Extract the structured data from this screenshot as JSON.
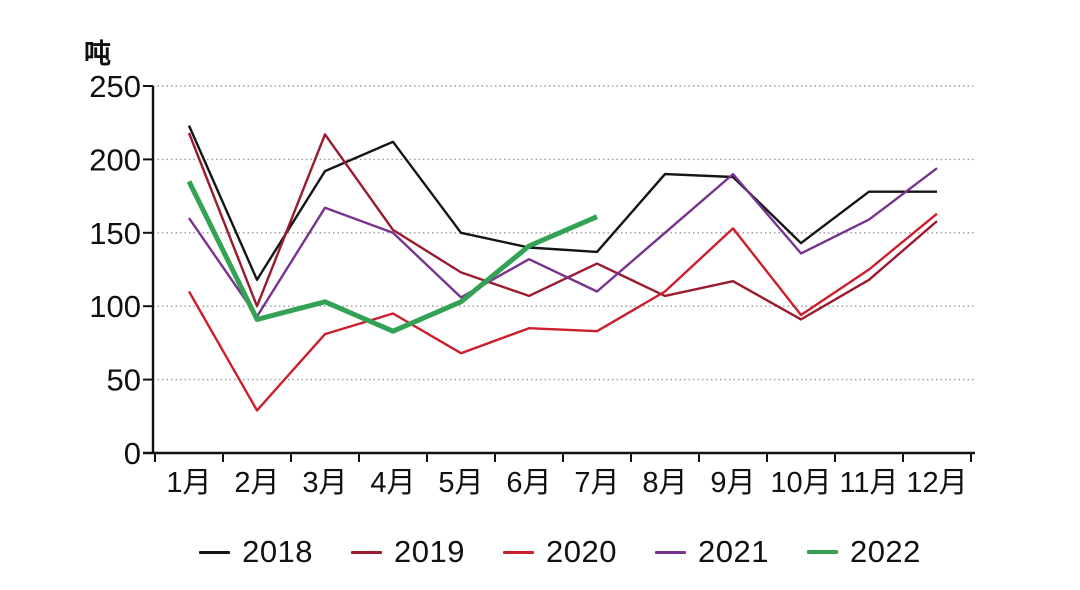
{
  "chart_data": {
    "type": "line",
    "title": "",
    "unit_label": "吨",
    "categories": [
      "1月",
      "2月",
      "3月",
      "4月",
      "5月",
      "6月",
      "7月",
      "8月",
      "9月",
      "10月",
      "11月",
      "12月"
    ],
    "series": [
      {
        "name": "2018",
        "color": "#141414",
        "line_width": 2.4,
        "values": [
          223,
          118,
          192,
          212,
          150,
          140,
          137,
          190,
          188,
          143,
          178,
          178
        ]
      },
      {
        "name": "2019",
        "color": "#9a1a2e",
        "line_width": 2.4,
        "values": [
          218,
          100,
          217,
          152,
          123,
          107,
          129,
          107,
          117,
          91,
          118,
          158
        ]
      },
      {
        "name": "2020",
        "color": "#cc1f2e",
        "line_width": 2.4,
        "values": [
          110,
          29,
          81,
          95,
          68,
          85,
          83,
          110,
          153,
          94,
          125,
          163
        ]
      },
      {
        "name": "2021",
        "color": "#78338e",
        "line_width": 2.4,
        "values": [
          160,
          93,
          167,
          150,
          106,
          132,
          110,
          150,
          190,
          136,
          159,
          194
        ]
      },
      {
        "name": "2022",
        "color": "#34a254",
        "line_width": 5,
        "values": [
          185,
          91,
          103,
          83,
          103,
          141,
          161,
          null,
          null,
          null,
          null,
          null
        ]
      }
    ],
    "ylim": [
      0,
      250
    ],
    "yticks": [
      0,
      50,
      100,
      150,
      200,
      250
    ],
    "ylabel": "吨",
    "xlabel": "",
    "grid": "horizontal dotted",
    "grid_color": "#9a9a9a",
    "axis_color": "#111111",
    "legend_position": "bottom"
  }
}
